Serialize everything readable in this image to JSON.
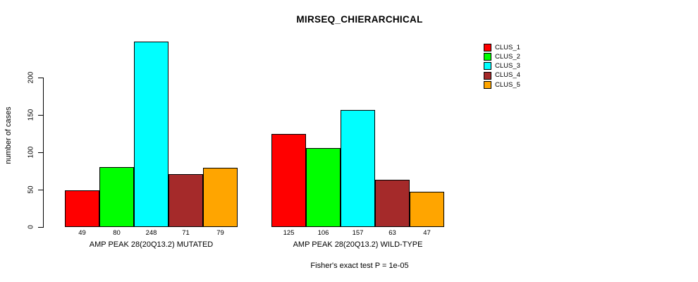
{
  "chart_data": {
    "type": "bar",
    "title": "MIRSEQ_CHIERARCHICAL",
    "ylabel": "number of cases",
    "xlabel": "",
    "categories": [
      "AMP PEAK 28(20Q13.2) MUTATED",
      "AMP PEAK 28(20Q13.2) WILD-TYPE"
    ],
    "series": [
      {
        "name": "CLUS_1",
        "color": "#FF0000",
        "values": [
          49,
          125
        ]
      },
      {
        "name": "CLUS_2",
        "color": "#00FF00",
        "values": [
          80,
          106
        ]
      },
      {
        "name": "CLUS_3",
        "color": "#00FFFF",
        "values": [
          248,
          157
        ]
      },
      {
        "name": "CLUS_4",
        "color": "#A52A2A",
        "values": [
          71,
          63
        ]
      },
      {
        "name": "CLUS_5",
        "color": "#FFA500",
        "values": [
          79,
          47
        ]
      }
    ],
    "yticks": [
      0,
      50,
      100,
      150,
      200
    ],
    "ylim": [
      0,
      248
    ],
    "grid": false,
    "legend_position": "right",
    "bar_value_labels": true,
    "annotation": "Fisher's exact test P = 1e-05"
  }
}
